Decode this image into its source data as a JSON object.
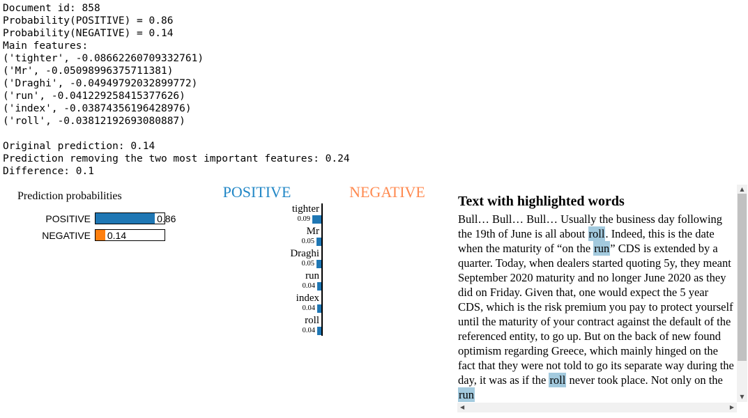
{
  "console": {
    "lines": [
      "Document id: 858",
      "Probability(POSITIVE) = 0.86",
      "Probability(NEGATIVE) = 0.14",
      "Main features:",
      "('tighter', -0.08662260709332761)",
      "('Mr', -0.05098996375711381)",
      "('Draghi', -0.04949792032899772)",
      "('run', -0.041229258415377626)",
      "('index', -0.03874356196428976)",
      "('roll', -0.03812192693080887)",
      "",
      "Original prediction: 0.14",
      "Prediction removing the two most important features: 0.24",
      "Difference: 0.1"
    ]
  },
  "prediction_probabilities": {
    "title": "Prediction probabilities",
    "bars": [
      {
        "label": "POSITIVE",
        "value": 0.86,
        "display": "0.86",
        "color": "#1f77b4"
      },
      {
        "label": "NEGATIVE",
        "value": 0.14,
        "display": "0.14",
        "color": "#ff7f0e"
      }
    ]
  },
  "explanation": {
    "headers": {
      "positive": {
        "label": "POSITIVE",
        "color": "#2287c6"
      },
      "negative": {
        "label": "NEGATIVE",
        "color": "#ff8a50"
      }
    },
    "bar_color": "#1f77b4",
    "features": [
      {
        "label": "tighter",
        "display": "0.09",
        "weight": 0.09
      },
      {
        "label": "Mr",
        "display": "0.05",
        "weight": 0.05
      },
      {
        "label": "Draghi",
        "display": "0.05",
        "weight": 0.05
      },
      {
        "label": "run",
        "display": "0.04",
        "weight": 0.04
      },
      {
        "label": "index",
        "display": "0.04",
        "weight": 0.04
      },
      {
        "label": "roll",
        "display": "0.04",
        "weight": 0.04
      }
    ]
  },
  "text_panel": {
    "title": "Text with highlighted words",
    "highlight_color": "#a3cade",
    "segments": [
      {
        "text": "Bull… Bull… Bull… Usually the business day following the 19th of June is all about ",
        "highlight": false
      },
      {
        "text": "roll",
        "highlight": true
      },
      {
        "text": ". Indeed, this is the date when the maturity of “on the ",
        "highlight": false
      },
      {
        "text": "run",
        "highlight": true
      },
      {
        "text": "” CDS is extended by a quarter. Today, when dealers started quoting 5y, they meant September 2020 maturity and no longer June 2020 as they did on Friday. Given that, one would expect the 5 year CDS, which is the risk premium you pay to protect yourself until the maturity of your contract against the default of the referenced entity, to go up. But on the back of new found optimism regarding Greece, which mainly hinged on the fact that they were not told to go its separate way during the day, it was as if the ",
        "highlight": false
      },
      {
        "text": "roll",
        "highlight": true
      },
      {
        "text": " never took place. Not only on the ",
        "highlight": false
      },
      {
        "text": "run",
        "highlight": true
      }
    ]
  },
  "icons": {
    "scroll_up_icon": "▲",
    "scroll_down_icon": "▼",
    "scroll_left_icon": "◀",
    "scroll_right_icon": "▶"
  },
  "chart_data": [
    {
      "type": "bar",
      "title": "Prediction probabilities",
      "orientation": "horizontal",
      "categories": [
        "POSITIVE",
        "NEGATIVE"
      ],
      "values": [
        0.86,
        0.14
      ],
      "value_labels": [
        "0.86",
        "0.14"
      ],
      "colors": [
        "#1f77b4",
        "#ff7f0e"
      ],
      "xlim": [
        0,
        1
      ],
      "grid": false,
      "legend": false
    },
    {
      "type": "bar",
      "title": "Feature weights toward POSITIVE vs NEGATIVE",
      "orientation": "horizontal",
      "categories": [
        "tighter",
        "Mr",
        "Draghi",
        "run",
        "index",
        "roll"
      ],
      "values": [
        0.09,
        0.05,
        0.05,
        0.04,
        0.04,
        0.04
      ],
      "series_direction": "POSITIVE",
      "color": "#1f77b4",
      "column_headers": [
        "POSITIVE",
        "NEGATIVE"
      ],
      "grid": false,
      "legend": false
    }
  ]
}
